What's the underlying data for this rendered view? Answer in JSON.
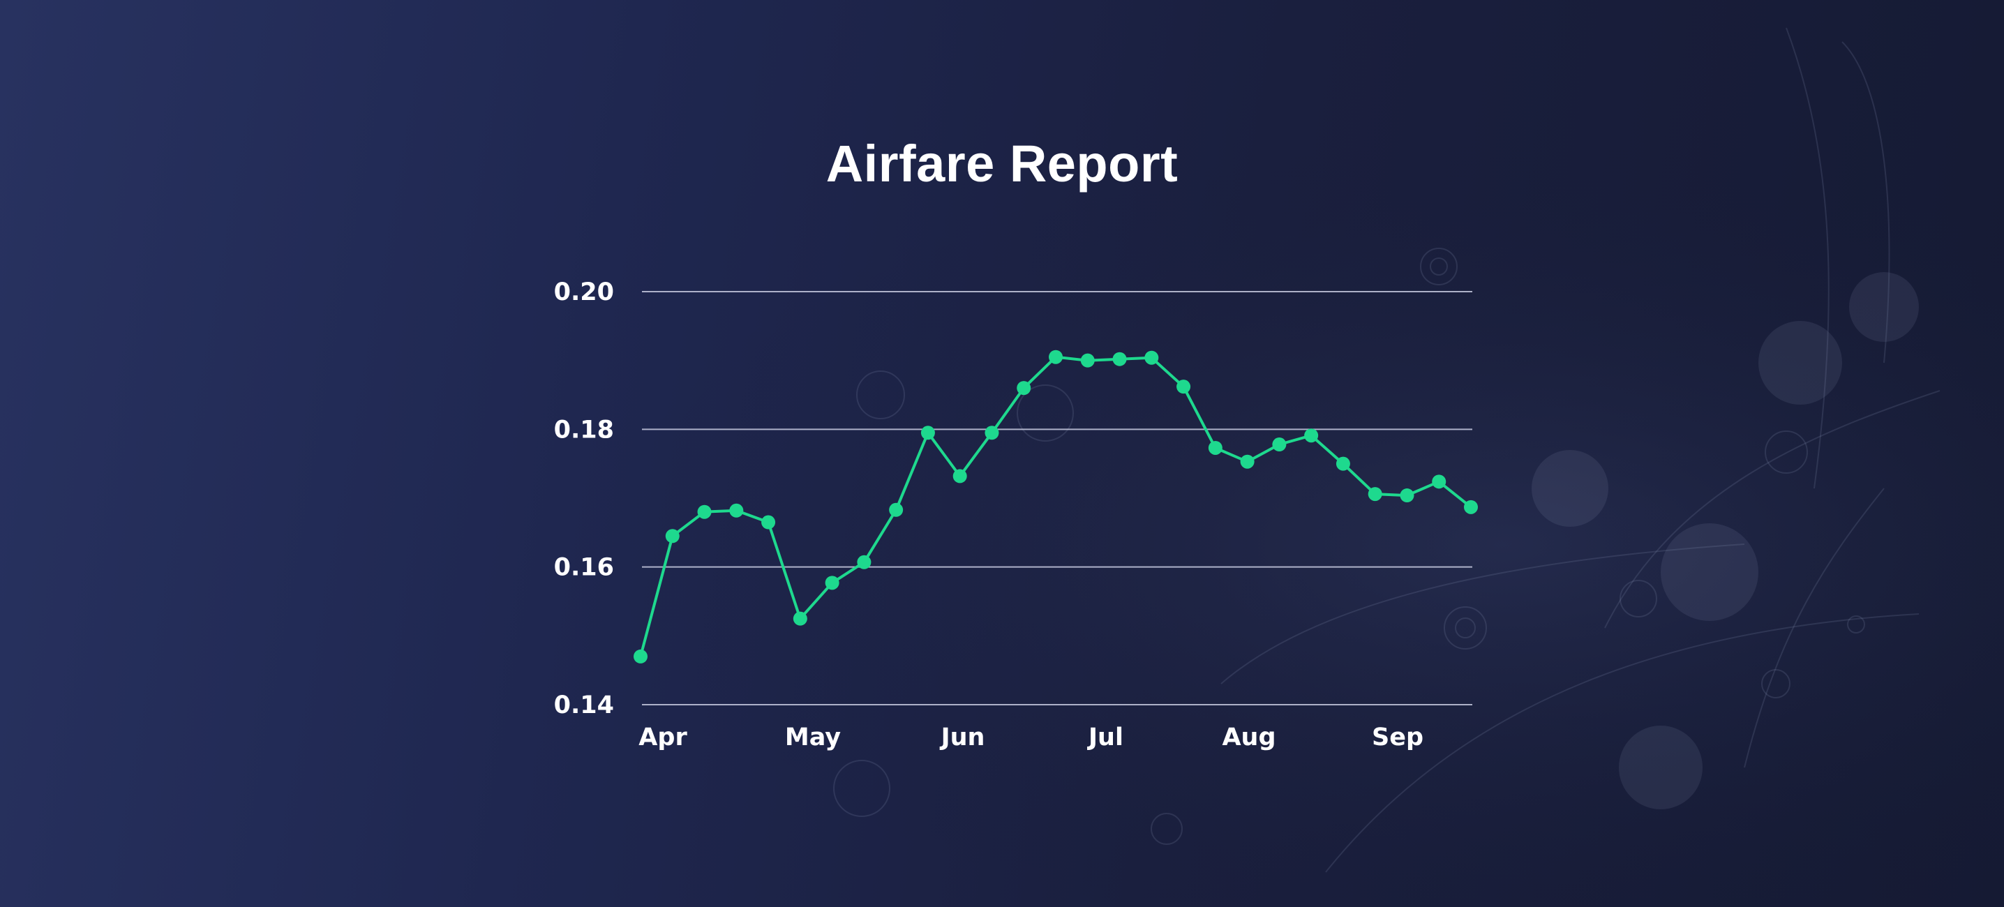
{
  "colors": {
    "line": "#1ed98e",
    "grid": "#c8cbe0",
    "text": "#ffffff"
  },
  "chart_data": {
    "type": "line",
    "title": "Airfare Report",
    "xlabel": "",
    "ylabel": "",
    "x_tick_labels": [
      "Apr",
      "May",
      "Jun",
      "Jul",
      "Aug",
      "Sep"
    ],
    "y_tick_labels": [
      "0.14",
      "0.16",
      "0.18",
      "0.20"
    ],
    "ylim": [
      0.14,
      0.2
    ],
    "grid": true,
    "legend": "none",
    "series": [
      {
        "values": [
          0.147,
          0.1645,
          0.168,
          0.1682,
          0.1665,
          0.1525,
          0.1577,
          0.1607,
          0.1683,
          0.1795,
          0.1732,
          0.1795,
          0.186,
          0.1905,
          0.19,
          0.1902,
          0.1904,
          0.1862,
          0.1773,
          0.1753,
          0.1778,
          0.1791,
          0.175,
          0.1706,
          0.1704,
          0.1724,
          0.1687
        ]
      }
    ]
  }
}
